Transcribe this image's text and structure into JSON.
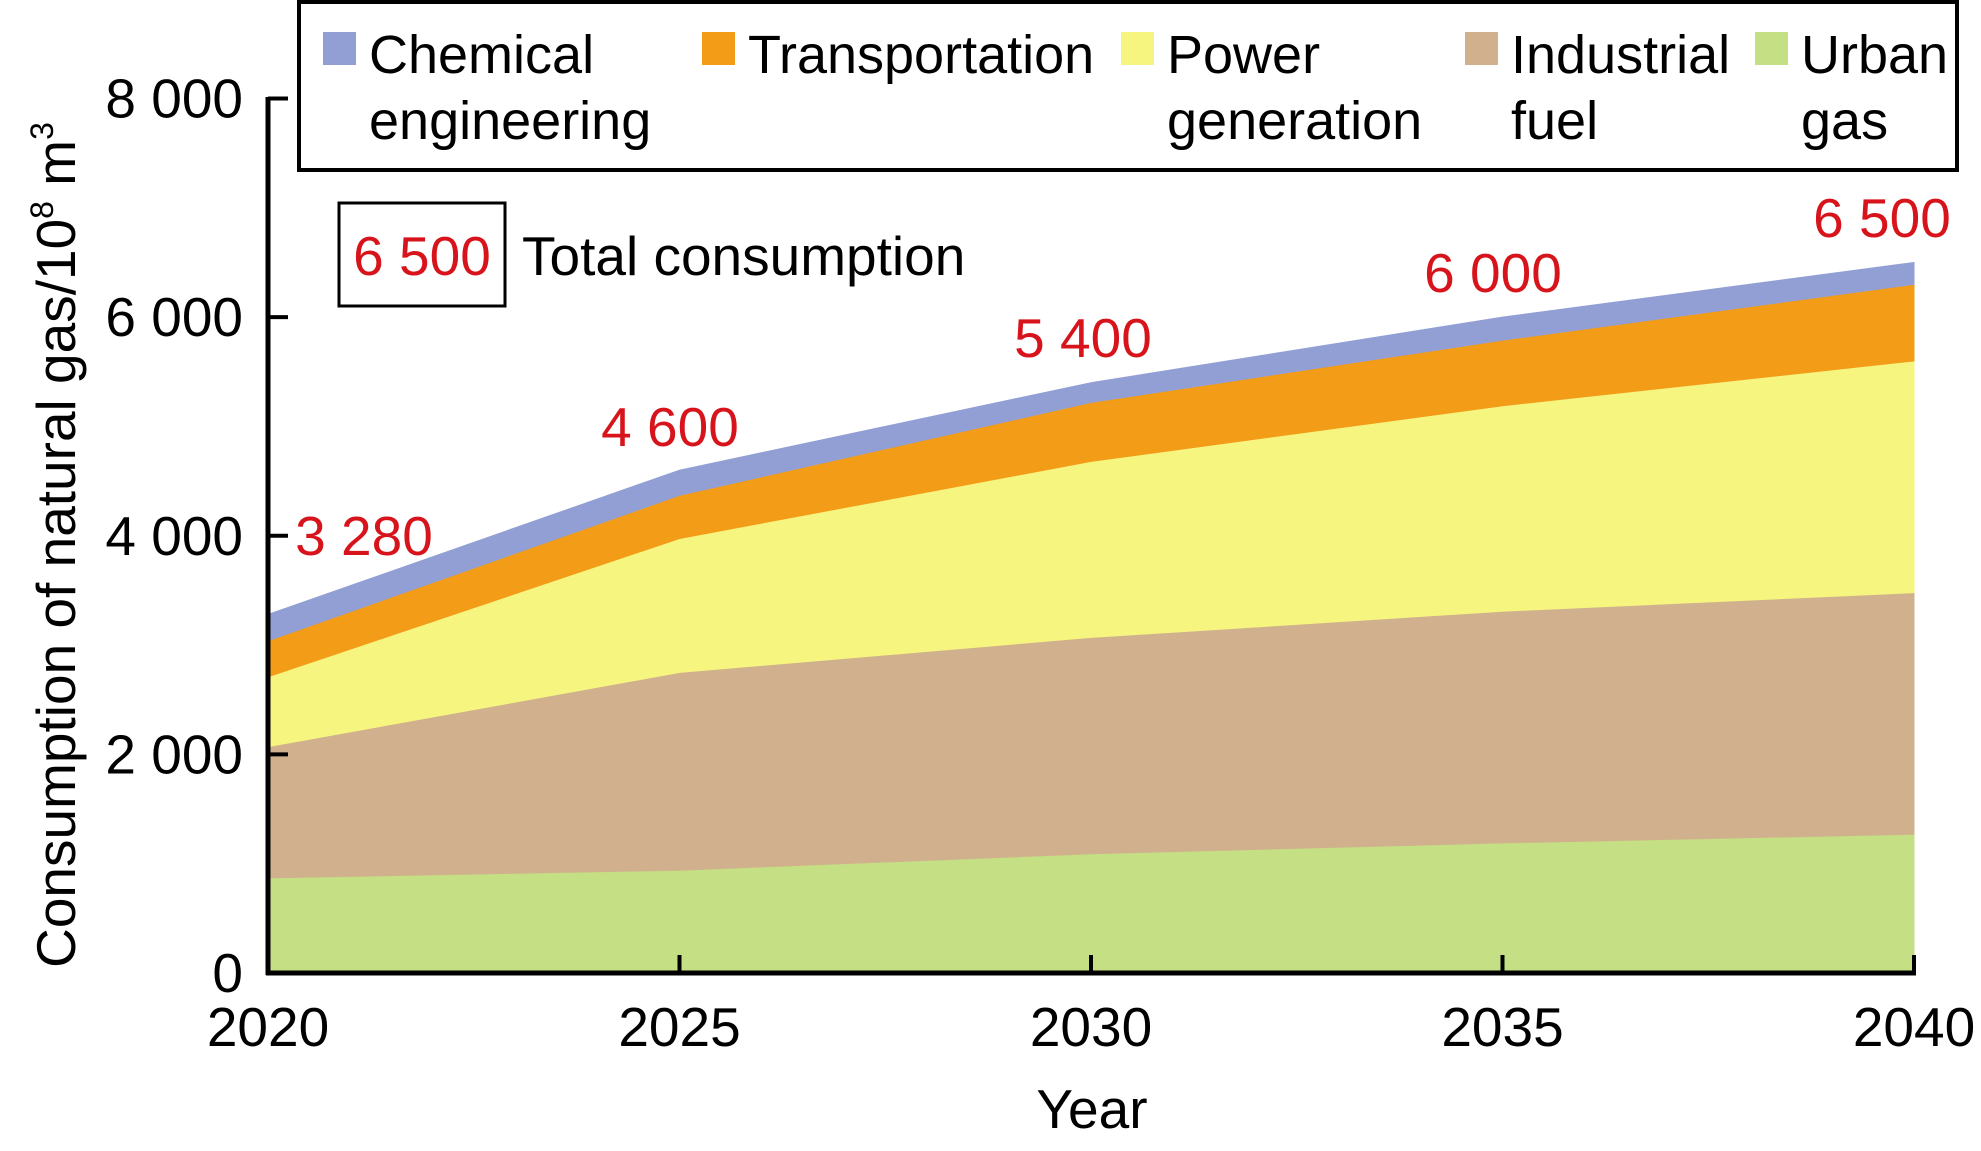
{
  "chart_data": {
    "type": "area",
    "stacked": true,
    "title": "",
    "xlabel": "Year",
    "ylabel": "Consumption of natural gas/10",
    "ylabel_superscript": "8",
    "ylabel_suffix": " m",
    "ylabel_suffix_superscript": "3",
    "x": [
      2020,
      2025,
      2030,
      2035,
      2040
    ],
    "x_tick_labels": [
      "2020",
      "2025",
      "2030",
      "2035",
      "2040"
    ],
    "ylim": [
      0,
      8000
    ],
    "y_ticks": [
      0,
      2000,
      4000,
      6000,
      8000
    ],
    "y_tick_labels": [
      "0",
      "2 000",
      "4 000",
      "6 000",
      "8 000"
    ],
    "grid": false,
    "legend_position": "top",
    "series": [
      {
        "name": "Urban gas",
        "legend_lines": [
          "Urban",
          "gas"
        ],
        "color": "#c4df84",
        "values": [
          870,
          940,
          1090,
          1190,
          1270
        ]
      },
      {
        "name": "Industrial fuel",
        "legend_lines": [
          "Industrial",
          "fuel"
        ],
        "color": "#d1b18d",
        "values": [
          1200,
          1810,
          1980,
          2120,
          2210
        ]
      },
      {
        "name": "Power generation",
        "legend_lines": [
          "Power",
          "generation"
        ],
        "color": "#f6f580",
        "values": [
          640,
          1225,
          1610,
          1880,
          2120
        ]
      },
      {
        "name": "Transportation",
        "legend_lines": [
          "Transportation"
        ],
        "color": "#f29c18",
        "values": [
          330,
          395,
          540,
          600,
          700
        ]
      },
      {
        "name": "Chemical engineering",
        "legend_lines": [
          "Chemical",
          "engineering"
        ],
        "color": "#919fd5",
        "values": [
          240,
          230,
          180,
          210,
          200
        ]
      }
    ],
    "legend_order": [
      "Chemical engineering",
      "Transportation",
      "Power generation",
      "Industrial fuel",
      "Urban gas"
    ],
    "totals": [
      3280,
      4600,
      5400,
      6000,
      6500
    ],
    "total_labels": [
      "3 280",
      "4 600",
      "5 400",
      "6 000",
      "6 500"
    ],
    "annotation": {
      "boxed_value": "6 500",
      "text": "Total consumption"
    },
    "label_color": "#d7141b"
  }
}
